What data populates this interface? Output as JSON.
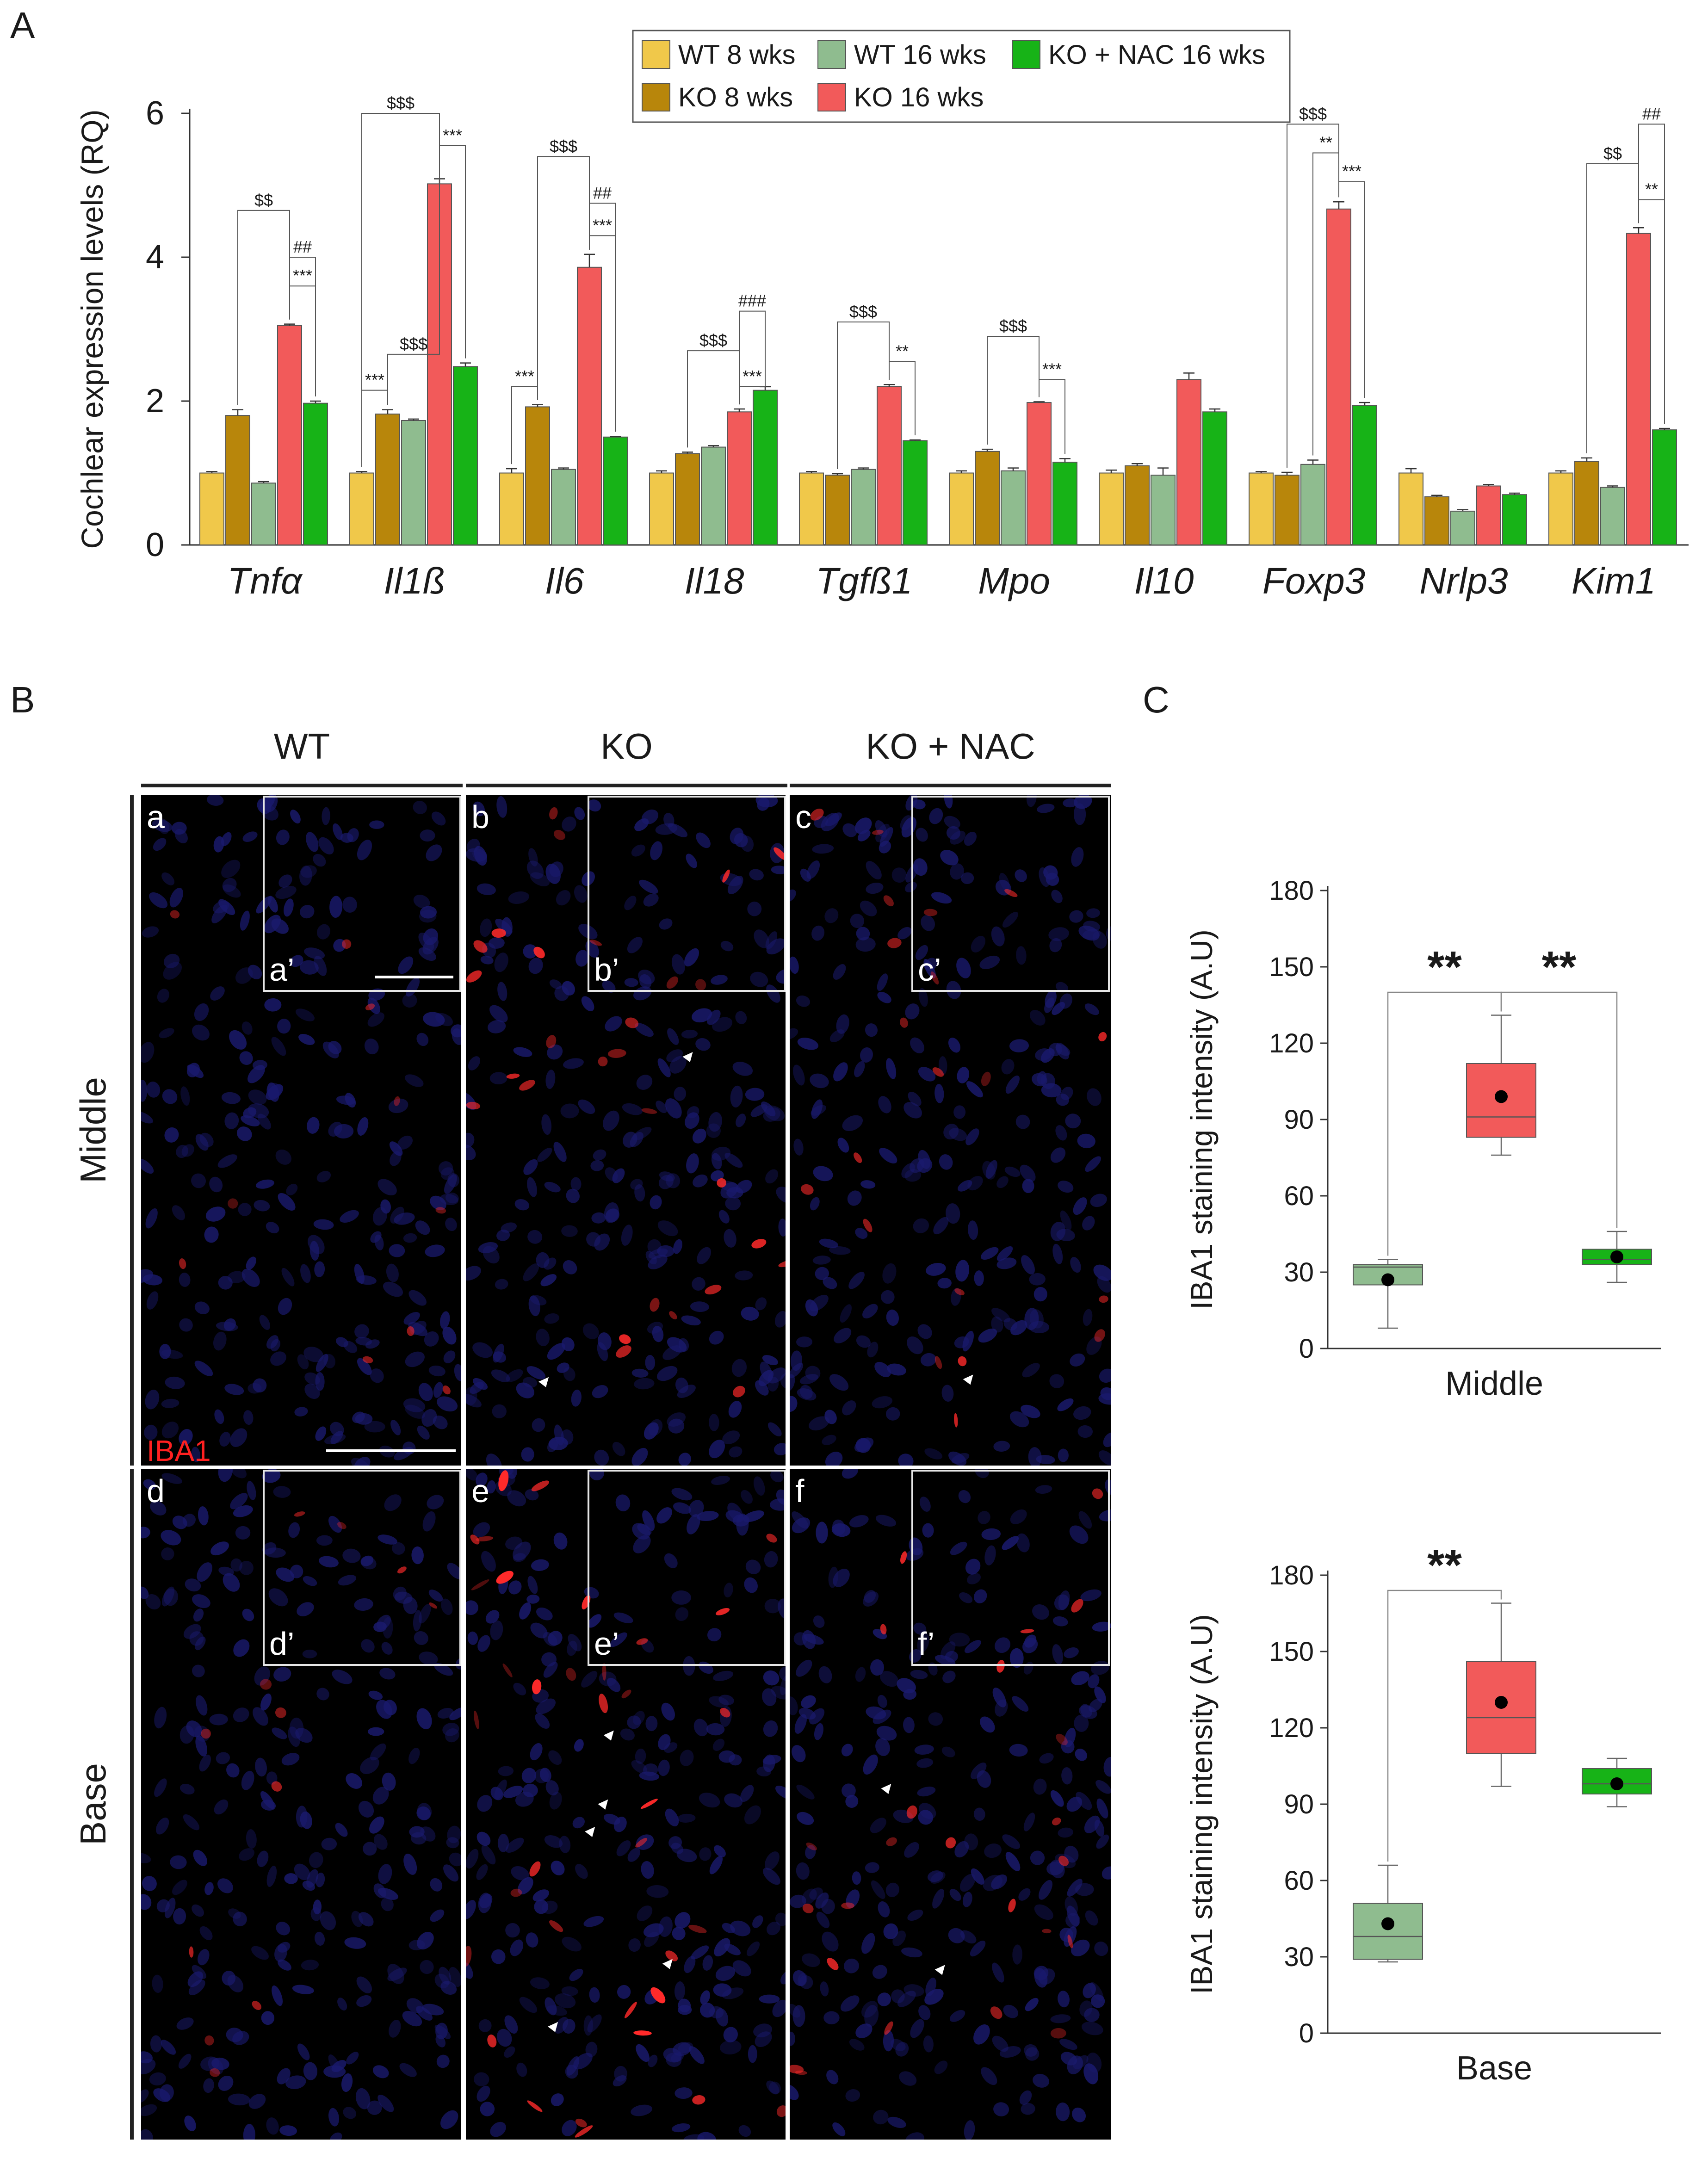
{
  "panel_labels": {
    "a": "A",
    "b": "B",
    "c": "C"
  },
  "colors": {
    "wt8": "#f0c84a",
    "ko8": "#b8860b",
    "wt16": "#8fbc8f",
    "ko16": "#f25a5a",
    "nac16": "#17b317",
    "nuclei": "#1a1a6e",
    "stain": "#ff2a2a"
  },
  "chart_data": [
    {
      "id": "bar-expression",
      "type": "bar",
      "ylabel": "Cochlear expression levels (RQ)",
      "ylim": [
        0,
        6
      ],
      "yticks": [
        0,
        2,
        4,
        6
      ],
      "categories": [
        "Tnfα",
        "Il1ß",
        "Il6",
        "Il18",
        "Tgfß1",
        "Mpo",
        "Il10",
        "Foxp3",
        "Nrlp3",
        "Kim1"
      ],
      "series": [
        {
          "name": "WT 8 wks",
          "key": "wt8",
          "values": [
            1.0,
            1.0,
            1.0,
            1.0,
            1.0,
            1.0,
            1.0,
            1.0,
            1.0,
            1.0
          ],
          "err": [
            0.02,
            0.02,
            0.06,
            0.03,
            0.02,
            0.03,
            0.04,
            0.02,
            0.06,
            0.03
          ]
        },
        {
          "name": "KO 8 wks",
          "key": "ko8",
          "values": [
            1.8,
            1.82,
            1.92,
            1.27,
            0.97,
            1.3,
            1.1,
            0.97,
            0.67,
            1.16
          ],
          "err": [
            0.08,
            0.06,
            0.03,
            0.02,
            0.02,
            0.03,
            0.03,
            0.04,
            0.02,
            0.05
          ]
        },
        {
          "name": "WT 16 wks",
          "key": "wt16",
          "values": [
            0.86,
            1.73,
            1.05,
            1.36,
            1.05,
            1.03,
            0.97,
            1.12,
            0.47,
            0.8
          ],
          "err": [
            0.02,
            0.02,
            0.02,
            0.02,
            0.02,
            0.04,
            0.1,
            0.06,
            0.02,
            0.02
          ]
        },
        {
          "name": "KO 16 wks",
          "key": "ko16",
          "values": [
            3.05,
            5.02,
            3.86,
            1.85,
            2.2,
            1.98,
            2.3,
            4.67,
            0.82,
            4.33
          ],
          "err": [
            0.02,
            0.07,
            0.18,
            0.04,
            0.03,
            0.01,
            0.09,
            0.1,
            0.02,
            0.08
          ]
        },
        {
          "name": "KO + NAC 16 wks",
          "key": "nac16",
          "values": [
            1.97,
            2.48,
            1.5,
            2.15,
            1.45,
            1.15,
            1.85,
            1.94,
            0.7,
            1.6
          ],
          "err": [
            0.03,
            0.05,
            0.01,
            0.05,
            0.01,
            0.05,
            0.04,
            0.04,
            0.02,
            0.02
          ]
        }
      ],
      "legend": {
        "placement": "top-center"
      },
      "annotations": [
        {
          "gene": 0,
          "from": 1,
          "to": 3,
          "label": "$$",
          "y": 4.65
        },
        {
          "gene": 0,
          "from": 3,
          "to": 4,
          "label": "##",
          "y": 4.0
        },
        {
          "gene": 0,
          "from": 3,
          "to": 4,
          "label": "***",
          "y": 3.6
        },
        {
          "gene": 1,
          "from": 0,
          "to": 1,
          "label": "***",
          "y": 2.15
        },
        {
          "gene": 1,
          "from": 1,
          "to": 3,
          "label": "$$$",
          "y": 2.65
        },
        {
          "gene": 1,
          "from": 3,
          "to": 4,
          "label": "***",
          "y": 5.55
        },
        {
          "gene": 1,
          "from": 0,
          "to": 3,
          "label": "$$$",
          "y": 6.0
        },
        {
          "gene": 2,
          "from": 0,
          "to": 1,
          "label": "***",
          "y": 2.2
        },
        {
          "gene": 2,
          "from": 3,
          "to": 4,
          "label": "***",
          "y": 4.3
        },
        {
          "gene": 2,
          "from": 3,
          "to": 4,
          "label": "##",
          "y": 4.75
        },
        {
          "gene": 2,
          "from": 1,
          "to": 3,
          "label": "$$$",
          "y": 5.4
        },
        {
          "gene": 3,
          "from": 3,
          "to": 4,
          "label": "***",
          "y": 2.2
        },
        {
          "gene": 3,
          "from": 1,
          "to": 3,
          "label": "$$$",
          "y": 2.7
        },
        {
          "gene": 3,
          "from": 3,
          "to": 4,
          "label": "###",
          "y": 3.25
        },
        {
          "gene": 4,
          "from": 3,
          "to": 4,
          "label": "**",
          "y": 2.55
        },
        {
          "gene": 4,
          "from": 1,
          "to": 3,
          "label": "$$$",
          "y": 3.1
        },
        {
          "gene": 5,
          "from": 3,
          "to": 4,
          "label": "***",
          "y": 2.3
        },
        {
          "gene": 5,
          "from": 1,
          "to": 3,
          "label": "$$$",
          "y": 2.9
        },
        {
          "gene": 7,
          "from": 3,
          "to": 4,
          "label": "***",
          "y": 5.05
        },
        {
          "gene": 7,
          "from": 2,
          "to": 3,
          "label": "**",
          "y": 5.45
        },
        {
          "gene": 7,
          "from": 1,
          "to": 3,
          "label": "$$$",
          "y": 5.85
        },
        {
          "gene": 9,
          "from": 3,
          "to": 4,
          "label": "**",
          "y": 4.8
        },
        {
          "gene": 9,
          "from": 1,
          "to": 3,
          "label": "$$",
          "y": 5.3
        },
        {
          "gene": 9,
          "from": 3,
          "to": 4,
          "label": "##",
          "y": 5.85
        }
      ]
    },
    {
      "id": "box-middle",
      "type": "box",
      "ylabel": "IBA1 staining intensity (A.U)",
      "xlabel": "Middle",
      "ylim": [
        0,
        180
      ],
      "yticks": [
        0,
        30,
        60,
        90,
        120,
        150,
        180
      ],
      "groups": [
        {
          "key": "wt16",
          "min": 8,
          "q1": 25,
          "median": 32,
          "q3": 33,
          "max": 35,
          "mean": 27
        },
        {
          "key": "ko16",
          "min": 76,
          "q1": 83,
          "median": 91,
          "q3": 112,
          "max": 131,
          "mean": 99
        },
        {
          "key": "nac16",
          "min": 26,
          "q1": 33,
          "median": 35,
          "q3": 39,
          "max": 46,
          "mean": 36
        }
      ],
      "brackets": [
        {
          "from": 0,
          "to": 1,
          "label": "**",
          "y": 140
        },
        {
          "from": 1,
          "to": 2,
          "label": "**",
          "y": 140
        }
      ]
    },
    {
      "id": "box-base",
      "type": "box",
      "ylabel": "IBA1 staining intensity (A.U)",
      "xlabel": "Base",
      "ylim": [
        0,
        180
      ],
      "yticks": [
        0,
        30,
        60,
        90,
        120,
        150,
        180
      ],
      "groups": [
        {
          "key": "wt16",
          "min": 28,
          "q1": 29,
          "median": 38,
          "q3": 51,
          "max": 66,
          "mean": 43
        },
        {
          "key": "ko16",
          "min": 97,
          "q1": 110,
          "median": 124,
          "q3": 146,
          "max": 169,
          "mean": 130
        },
        {
          "key": "nac16",
          "min": 89,
          "q1": 94,
          "median": 98,
          "q3": 104,
          "max": 108,
          "mean": 98
        }
      ],
      "brackets": [
        {
          "from": 0,
          "to": 1,
          "label": "**",
          "y": 174
        }
      ]
    }
  ],
  "micrographs": {
    "columns": [
      "WT",
      "KO",
      "KO + NAC"
    ],
    "rows": [
      "Middle",
      "Base"
    ],
    "stain_label": "IBA1",
    "panels": [
      {
        "letter": "a",
        "inset": "a’",
        "intensity": 0.1,
        "arrows": 0
      },
      {
        "letter": "b",
        "inset": "b’",
        "intensity": 0.55,
        "arrows": 2
      },
      {
        "letter": "c",
        "inset": "c’",
        "intensity": 0.35,
        "arrows": 1
      },
      {
        "letter": "d",
        "inset": "d’",
        "intensity": 0.15,
        "arrows": 0
      },
      {
        "letter": "e",
        "inset": "e’",
        "intensity": 0.75,
        "arrows": 5
      },
      {
        "letter": "f",
        "inset": "f’",
        "intensity": 0.45,
        "arrows": 2
      }
    ]
  }
}
